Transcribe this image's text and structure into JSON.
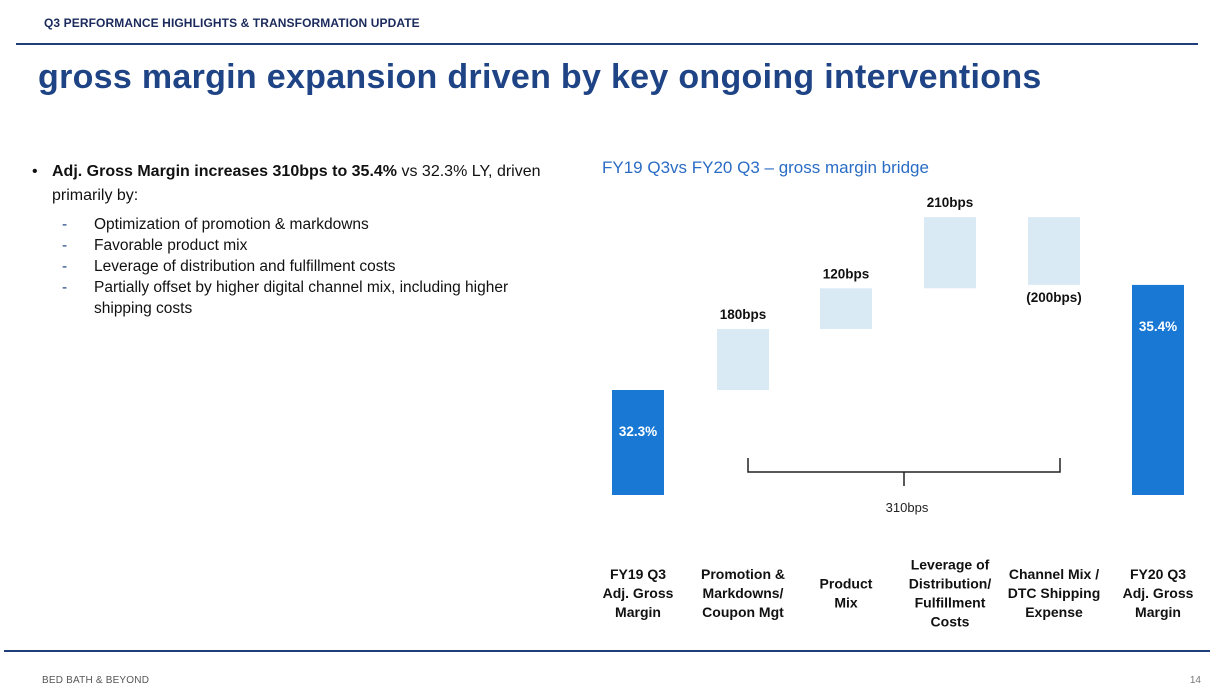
{
  "header": {
    "section_label": "Q3 PERFORMANCE HIGHLIGHTS & TRANSFORMATION UPDATE",
    "title": "gross margin expansion driven by key ongoing interventions"
  },
  "bullets": {
    "main_bold": "Adj. Gross Margin increases 310bps to 35.4%",
    "main_rest": " vs 32.3% LY, driven primarily by:",
    "sub": [
      "Optimization of promotion & markdowns",
      "Favorable product mix",
      "Leverage of distribution and fulfillment costs",
      "Partially offset by higher digital channel mix, including higher shipping costs"
    ]
  },
  "chart_data": {
    "type": "bar",
    "subtype": "waterfall",
    "title": "FY19 Q3vs FY20 Q3 – gross margin bridge",
    "categories": [
      "FY19 Q3 Adj. Gross Margin",
      "Promotion & Markdowns/ Coupon Mgt",
      "Product Mix",
      "Leverage of Distribution/ Fulfillment Costs",
      "Channel Mix / DTC Shipping Expense",
      "FY20 Q3 Adj. Gross Margin"
    ],
    "category_lines": [
      [
        "FY19 Q3",
        "Adj. Gross",
        "Margin"
      ],
      [
        "Promotion &",
        "Markdowns/",
        "Coupon Mgt"
      ],
      [
        "Product",
        "Mix"
      ],
      [
        "Leverage of",
        "Distribution/",
        "Fulfillment",
        "Costs"
      ],
      [
        "Channel Mix /",
        "DTC Shipping",
        "Expense"
      ],
      [
        "FY20 Q3",
        "Adj. Gross",
        "Margin"
      ]
    ],
    "values_pct": [
      32.3,
      1.8,
      1.2,
      2.1,
      -2.0,
      35.4
    ],
    "bar_kinds": [
      "total",
      "delta",
      "delta",
      "delta",
      "delta",
      "total"
    ],
    "data_labels": [
      "32.3%",
      "180bps",
      "120bps",
      "210bps",
      "(200bps)",
      "35.4%"
    ],
    "bracket_label": "310bps",
    "colors": {
      "total": "#1878d4",
      "delta": "#daeaf4",
      "total_label": "#ffffff",
      "delta_label": "#111111"
    }
  },
  "footer": {
    "brand": "BED BATH & BEYOND",
    "page": "14"
  }
}
